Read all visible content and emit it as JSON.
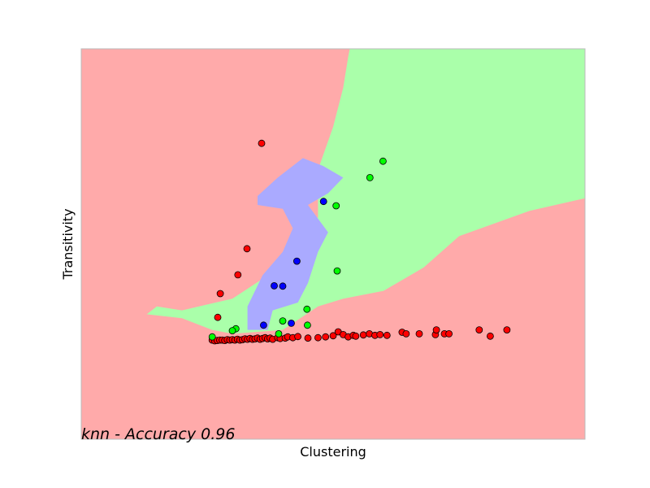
{
  "colors": {
    "region_red": "#ffaaaa",
    "region_green": "#aaffaa",
    "region_blue": "#aaaaff",
    "point_red": "#ff0000",
    "point_green": "#00ff00",
    "point_blue": "#0000ff",
    "frame": "#bbbbbb"
  },
  "chart_data": {
    "type": "scatter",
    "title": "",
    "xlabel": "Clustering",
    "ylabel": "Transitivity",
    "annotation": "knn - Accuracy 0.96",
    "xlim": [
      0,
      1
    ],
    "ylim": [
      0,
      1
    ],
    "grid": false,
    "ticks": "hidden",
    "decision_regions": {
      "background_class": "red",
      "green": [
        [
          0.533,
          1.0
        ],
        [
          1.0,
          1.0
        ],
        [
          1.0,
          0.617
        ],
        [
          0.89,
          0.585
        ],
        [
          0.75,
          0.52
        ],
        [
          0.68,
          0.44
        ],
        [
          0.6,
          0.38
        ],
        [
          0.52,
          0.36
        ],
        [
          0.47,
          0.34
        ],
        [
          0.4,
          0.28
        ],
        [
          0.3,
          0.27
        ],
        [
          0.26,
          0.28
        ],
        [
          0.2,
          0.31
        ],
        [
          0.13,
          0.32
        ],
        [
          0.15,
          0.34
        ],
        [
          0.2,
          0.33
        ],
        [
          0.3,
          0.36
        ],
        [
          0.43,
          0.47
        ],
        [
          0.47,
          0.57
        ],
        [
          0.47,
          0.69
        ],
        [
          0.5,
          0.8
        ],
        [
          0.52,
          0.9
        ],
        [
          0.53,
          0.98
        ]
      ],
      "blue": [
        [
          0.35,
          0.623
        ],
        [
          0.39,
          0.67
        ],
        [
          0.44,
          0.72
        ],
        [
          0.48,
          0.7
        ],
        [
          0.52,
          0.67
        ],
        [
          0.49,
          0.63
        ],
        [
          0.45,
          0.6
        ],
        [
          0.49,
          0.53
        ],
        [
          0.47,
          0.48
        ],
        [
          0.45,
          0.4
        ],
        [
          0.43,
          0.35
        ],
        [
          0.38,
          0.33
        ],
        [
          0.37,
          0.28
        ],
        [
          0.33,
          0.28
        ],
        [
          0.33,
          0.34
        ],
        [
          0.36,
          0.42
        ],
        [
          0.4,
          0.48
        ],
        [
          0.42,
          0.54
        ],
        [
          0.4,
          0.59
        ],
        [
          0.35,
          0.6
        ]
      ]
    },
    "series": [
      {
        "class": "red",
        "points": [
          [
            0.358,
            0.758
          ],
          [
            0.329,
            0.488
          ],
          [
            0.311,
            0.421
          ],
          [
            0.276,
            0.373
          ],
          [
            0.271,
            0.312
          ],
          [
            0.26,
            0.254
          ],
          [
            0.265,
            0.252
          ],
          [
            0.27,
            0.253
          ],
          [
            0.275,
            0.254
          ],
          [
            0.28,
            0.254
          ],
          [
            0.285,
            0.253
          ],
          [
            0.29,
            0.255
          ],
          [
            0.295,
            0.254
          ],
          [
            0.3,
            0.255
          ],
          [
            0.305,
            0.254
          ],
          [
            0.31,
            0.256
          ],
          [
            0.315,
            0.254
          ],
          [
            0.32,
            0.255
          ],
          [
            0.325,
            0.257
          ],
          [
            0.33,
            0.256
          ],
          [
            0.335,
            0.258
          ],
          [
            0.34,
            0.256
          ],
          [
            0.345,
            0.257
          ],
          [
            0.35,
            0.259
          ],
          [
            0.355,
            0.256
          ],
          [
            0.36,
            0.258
          ],
          [
            0.365,
            0.26
          ],
          [
            0.37,
            0.257
          ],
          [
            0.375,
            0.259
          ],
          [
            0.38,
            0.256
          ],
          [
            0.39,
            0.26
          ],
          [
            0.395,
            0.258
          ],
          [
            0.405,
            0.259
          ],
          [
            0.41,
            0.262
          ],
          [
            0.42,
            0.26
          ],
          [
            0.43,
            0.263
          ],
          [
            0.45,
            0.259
          ],
          [
            0.47,
            0.26
          ],
          [
            0.485,
            0.262
          ],
          [
            0.5,
            0.265
          ],
          [
            0.51,
            0.275
          ],
          [
            0.52,
            0.268
          ],
          [
            0.53,
            0.262
          ],
          [
            0.54,
            0.266
          ],
          [
            0.545,
            0.264
          ],
          [
            0.56,
            0.267
          ],
          [
            0.572,
            0.27
          ],
          [
            0.583,
            0.266
          ],
          [
            0.593,
            0.268
          ],
          [
            0.607,
            0.266
          ],
          [
            0.637,
            0.274
          ],
          [
            0.645,
            0.27
          ],
          [
            0.671,
            0.27
          ],
          [
            0.703,
            0.268
          ],
          [
            0.705,
            0.28
          ],
          [
            0.721,
            0.27
          ],
          [
            0.73,
            0.27
          ],
          [
            0.79,
            0.28
          ],
          [
            0.812,
            0.264
          ],
          [
            0.845,
            0.28
          ]
        ]
      },
      {
        "class": "green",
        "points": [
          [
            0.599,
            0.712
          ],
          [
            0.573,
            0.67
          ],
          [
            0.506,
            0.598
          ],
          [
            0.508,
            0.431
          ],
          [
            0.448,
            0.333
          ],
          [
            0.4,
            0.303
          ],
          [
            0.449,
            0.292
          ],
          [
            0.307,
            0.283
          ],
          [
            0.3,
            0.278
          ],
          [
            0.26,
            0.262
          ],
          [
            0.392,
            0.27
          ]
        ]
      },
      {
        "class": "blue",
        "points": [
          [
            0.481,
            0.609
          ],
          [
            0.428,
            0.456
          ],
          [
            0.383,
            0.393
          ],
          [
            0.4,
            0.392
          ],
          [
            0.417,
            0.297
          ],
          [
            0.362,
            0.292
          ]
        ]
      }
    ]
  }
}
